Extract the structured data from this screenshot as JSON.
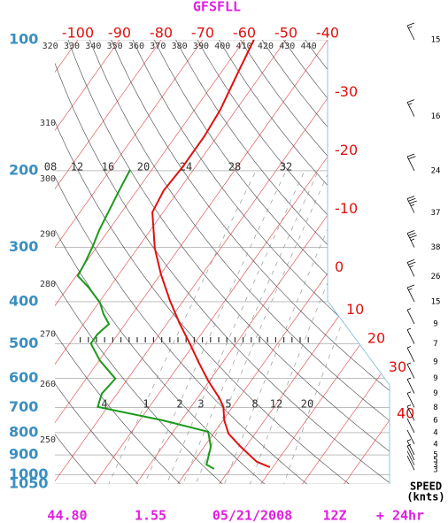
{
  "chart_data": {
    "type": "skewt",
    "title": "GFSFLL",
    "ylim": [
      1050,
      100
    ],
    "pressure_ticks": [
      100,
      200,
      300,
      400,
      500,
      600,
      700,
      800,
      900,
      1000,
      1050
    ],
    "temperature_ticks": [
      -100,
      -90,
      -80,
      -70,
      -60,
      -50,
      -40,
      -30,
      -20,
      -10,
      0,
      10,
      20,
      30,
      40
    ],
    "theta_ticks": [
      250,
      260,
      270,
      280,
      290,
      300,
      310,
      320,
      330,
      340,
      350,
      360,
      370,
      380,
      390,
      400,
      410,
      420,
      430,
      440
    ],
    "mixing_labels_upper": [
      "08",
      "12",
      "16",
      "20",
      "24",
      "28",
      "32"
    ],
    "mixing_ratios": [
      4,
      1,
      2,
      3,
      5,
      8,
      12,
      20
    ],
    "profiles": [
      {
        "color": "#e01010",
        "pressure": [
          100,
          118,
          145,
          167,
          197,
          222,
          249,
          301,
          346,
          398,
          448,
          503,
          553,
          607,
          667,
          698,
          749,
          804,
          862,
          933,
          960
        ],
        "temperature": [
          -57.7,
          -56.0,
          -53.8,
          -53.1,
          -53.1,
          -53.6,
          -52.6,
          -45.9,
          -39.9,
          -33.2,
          -27.1,
          -20.7,
          -15.6,
          -10.4,
          -4.6,
          -2.2,
          0.3,
          3.6,
          8.8,
          15.2,
          19.3
        ]
      },
      {
        "color": "#1a9a1a",
        "pressure": [
          199,
          222,
          249,
          274,
          298,
          323,
          349,
          371,
          402,
          427,
          450,
          475,
          499,
          547,
          601,
          651,
          698,
          749,
          796,
          862,
          947,
          969
        ],
        "temperature": [
          -65.2,
          -64.3,
          -63.2,
          -62.3,
          -61.1,
          -60.2,
          -59.6,
          -55.0,
          -49.7,
          -46.9,
          -43.9,
          -44.9,
          -44.9,
          -39.7,
          -33.0,
          -33.7,
          -32.4,
          -14.6,
          -1.6,
          1.6,
          3.6,
          6.2
        ]
      }
    ],
    "wind": {
      "pressure": [
        100,
        150,
        200,
        250,
        300,
        350,
        400,
        450,
        500,
        550,
        600,
        650,
        700,
        750,
        800,
        850,
        900,
        925,
        950,
        975
      ],
      "speed": [
        15,
        16,
        24,
        37,
        38,
        26,
        15,
        9,
        7,
        9,
        9,
        9,
        8,
        6,
        4,
        4,
        5,
        5,
        3,
        3
      ]
    },
    "speed_label": "SPEED",
    "speed_unit": "(knts)",
    "footer": [
      "44.80",
      "1.55",
      "05/21/2008",
      "12Z",
      "+ 24hr"
    ]
  }
}
